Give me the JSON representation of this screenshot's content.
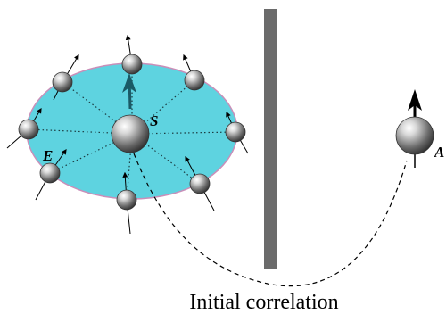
{
  "labels": {
    "system": "S",
    "environment": "E",
    "ancilla": "A",
    "caption": "Initial correlation"
  },
  "colors": {
    "environment_fill": "#5ed3e0",
    "environment_edge": "#c98fb9",
    "barrier": "#6b6b6b",
    "system_arrow": "#1a5a66",
    "line": "#000000"
  },
  "icons": {
    "spin": "sphere-with-arrow-icon"
  }
}
